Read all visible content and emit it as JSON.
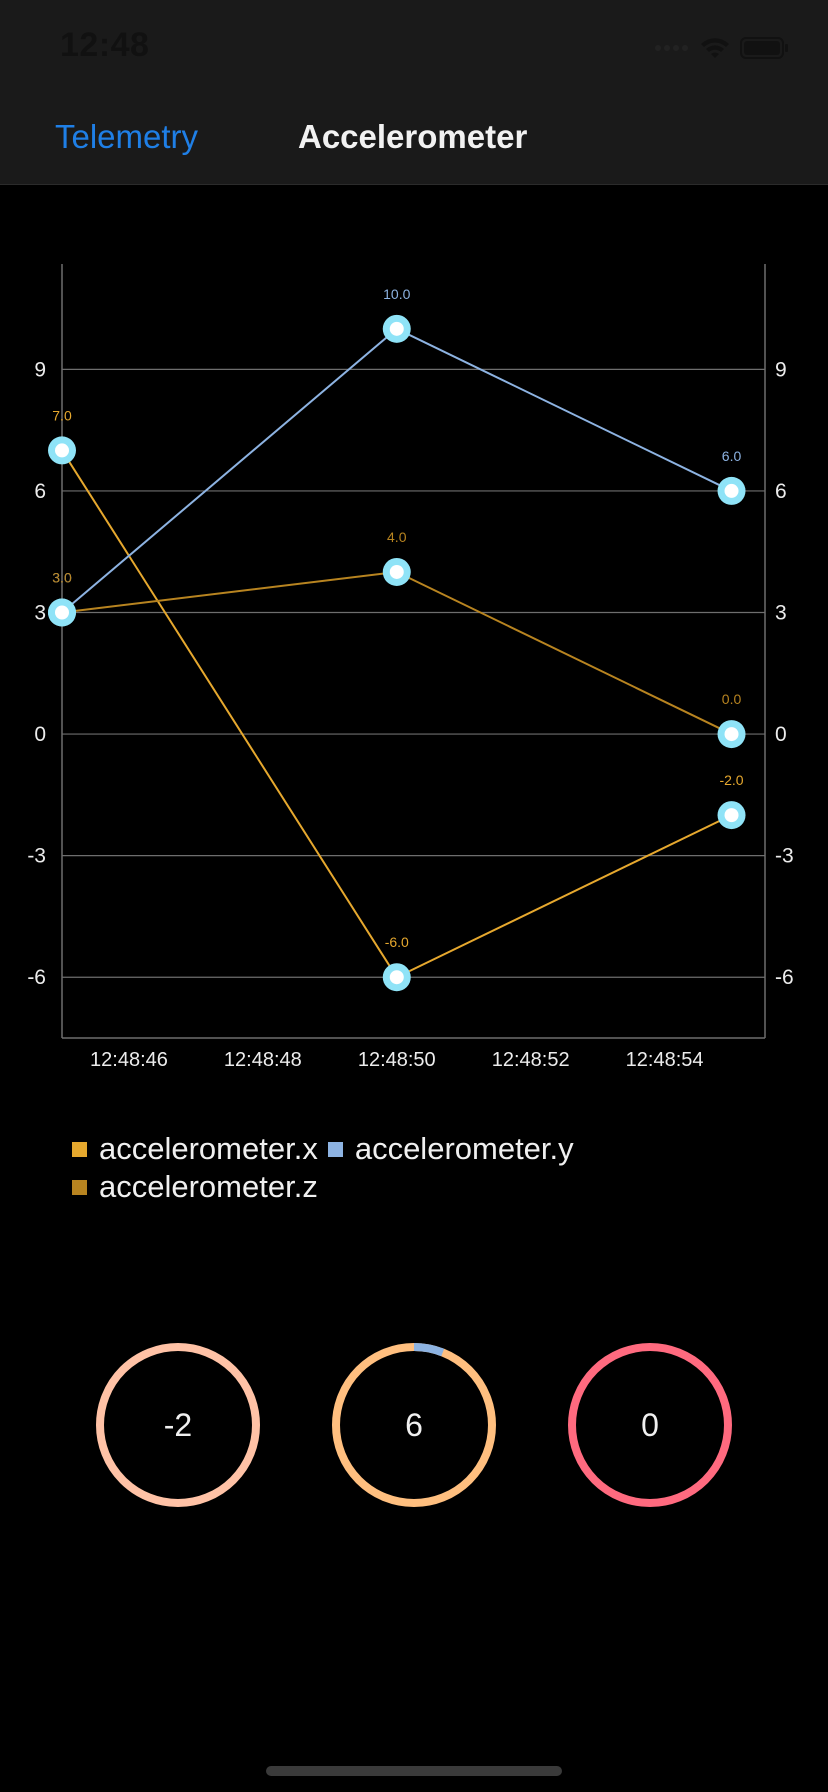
{
  "status_bar": {
    "time": "12:48",
    "icons": [
      "signal-dots-icon",
      "wifi-icon",
      "battery-icon"
    ]
  },
  "nav": {
    "back_label": "Telemetry",
    "title": "Accelerometer"
  },
  "chart_data": {
    "type": "line",
    "x": [
      "12:48:45",
      "12:48:50",
      "12:48:55"
    ],
    "x_tick_labels": [
      "12:48:46",
      "12:48:48",
      "12:48:50",
      "12:48:52",
      "12:48:54"
    ],
    "x_tick_values": [
      "12:48:46",
      "12:48:48",
      "12:48:50",
      "12:48:52",
      "12:48:54"
    ],
    "xlim": [
      "12:48:45",
      "12:48:55.5"
    ],
    "ylim": [
      -7.5,
      11.6
    ],
    "y_ticks": [
      -6,
      -3,
      0,
      3,
      6,
      9
    ],
    "y_axis": "both-sides",
    "grid": "horizontal",
    "legend": "bottom-left",
    "series": [
      {
        "name": "accelerometer.x",
        "values": [
          7,
          -6,
          -2
        ],
        "labels": [
          "7.0",
          "-6.0",
          "-2.0"
        ],
        "color": "#e6a82e"
      },
      {
        "name": "accelerometer.y",
        "values": [
          3,
          10,
          6
        ],
        "labels": [
          "3.0",
          "10.0",
          "6.0"
        ],
        "color": "#8db3e2"
      },
      {
        "name": "accelerometer.z",
        "values": [
          3,
          4,
          0
        ],
        "labels": [
          "3.0",
          "4.0",
          "0.0"
        ],
        "color": "#b88420"
      }
    ],
    "marker_color": "#8fe3f7"
  },
  "gauges": [
    {
      "value": "-2",
      "ring_color": "#ffc2a6",
      "fill_fraction": 0,
      "fill_color": "#8db3e2"
    },
    {
      "value": "6",
      "ring_color": "#ffbf7f",
      "fill_fraction": 0.06,
      "fill_color": "#8db3e2"
    },
    {
      "value": "0",
      "ring_color": "#ff6a7f",
      "fill_fraction": 0,
      "fill_color": "#8db3e2"
    }
  ],
  "colors": {
    "background": "#000000",
    "nav_background": "#1a1a1a",
    "accent": "#1f7fe6",
    "grid": "#6e6e6e"
  }
}
